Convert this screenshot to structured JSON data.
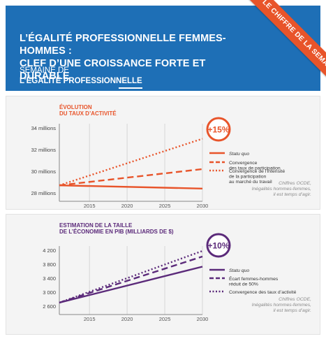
{
  "header": {
    "title_line1": "L’ÉGALITÉ PROFESSIONNELLE FEMMES-HOMMES :",
    "title_line2": "CLEF D’UNE CROISSANCE FORTE ET DURABLE",
    "subtitle_line1": "SEMAINE DE",
    "subtitle_line2": "L’ÉGALITÉ PROFESSIONNELLE",
    "ribbon": "LE CHIFFRE DE LA SEMAINE"
  },
  "colors": {
    "header_bg": "#1e6fb6",
    "orange": "#e8542a",
    "purple": "#5b2a7a"
  },
  "chart_data": [
    {
      "type": "line",
      "title_line1": "ÉVOLUTION",
      "title_line2": "DU TAUX D’ACTIVITÉ",
      "x": [
        2011,
        2030
      ],
      "xticks": [
        2015,
        2020,
        2025,
        2030
      ],
      "yticks": [
        28,
        30,
        32,
        34
      ],
      "ytick_labels": [
        "28 millions",
        "30 millions",
        "32 millions",
        "34 millions"
      ],
      "xlim": [
        2011,
        2030
      ],
      "ylim": [
        28,
        34
      ],
      "grid": "vertical",
      "badge": "+15%",
      "legend_position": "right",
      "source_lines": [
        "Chiffres OCDE,",
        "Inégalités hommes-femmes,",
        "il est temps d’agir."
      ],
      "series": [
        {
          "name_lines": [
            "Statu quo"
          ],
          "style": "solid",
          "color": "#e8542a",
          "values": [
            28.7,
            28.4
          ]
        },
        {
          "name_lines": [
            "Convergence",
            "des taux de participation"
          ],
          "style": "dashed",
          "color": "#e8542a",
          "values": [
            28.7,
            30.2
          ]
        },
        {
          "name_lines": [
            "Convergence de l’intensité",
            "de la participation",
            "au marché du travail"
          ],
          "style": "dotted",
          "color": "#e8542a",
          "values": [
            28.7,
            33.0
          ]
        }
      ]
    },
    {
      "type": "line",
      "title_line1": "ESTIMATION DE LA TAILLE",
      "title_line2": "DE L’ÉCONOMIE EN PIB (MILLIARDS DE $)",
      "x": [
        2011,
        2030
      ],
      "xticks": [
        2015,
        2020,
        2025,
        2030
      ],
      "yticks": [
        2600,
        3000,
        3400,
        3800,
        4200
      ],
      "ytick_labels": [
        "2 600",
        "3 000",
        "3 400",
        "3 800",
        "4 200"
      ],
      "xlim": [
        2011,
        2030
      ],
      "ylim": [
        2600,
        4200
      ],
      "grid": "vertical",
      "badge": "+10%",
      "legend_position": "right",
      "source_lines": [
        "Chiffres OCDE,",
        "Inégalités hommes-femmes,",
        "il est temps d’agir."
      ],
      "series": [
        {
          "name_lines": [
            "Statu quo"
          ],
          "style": "solid",
          "color": "#5b2a7a",
          "values": [
            2700,
            3730
          ]
        },
        {
          "name_lines": [
            "Écart femmes-hommes",
            "réduit de 50%"
          ],
          "style": "dashed",
          "color": "#5b2a7a",
          "values": [
            2700,
            4020
          ]
        },
        {
          "name_lines": [
            "Convergence des taux d’activité"
          ],
          "style": "dotted",
          "color": "#5b2a7a",
          "values": [
            2700,
            4180
          ]
        }
      ]
    }
  ]
}
